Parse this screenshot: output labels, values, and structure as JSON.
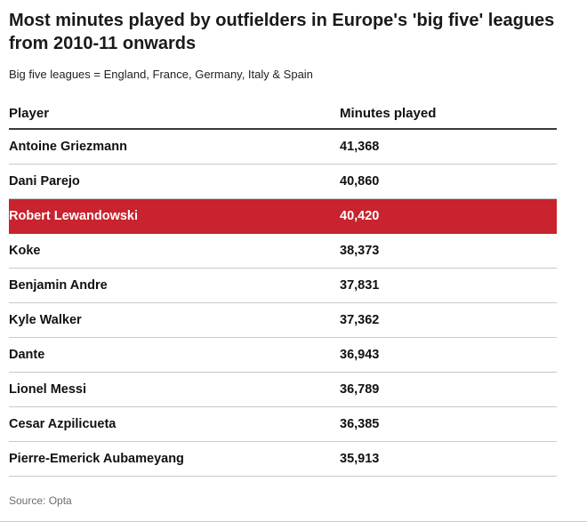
{
  "header": {
    "title": "Most minutes played by outfielders in Europe's 'big five' leagues from 2010-11 onwards",
    "subtitle": "Big five leagues = England, France, Germany, Italy & Spain"
  },
  "table": {
    "columns": [
      "Player",
      "Minutes played"
    ],
    "rows": [
      {
        "player": "Antoine Griezmann",
        "minutes": "41,368",
        "highlight": false
      },
      {
        "player": "Dani Parejo",
        "minutes": "40,860",
        "highlight": false
      },
      {
        "player": "Robert Lewandowski",
        "minutes": "40,420",
        "highlight": true
      },
      {
        "player": "Koke",
        "minutes": "38,373",
        "highlight": false
      },
      {
        "player": "Benjamin Andre",
        "minutes": "37,831",
        "highlight": false
      },
      {
        "player": "Kyle Walker",
        "minutes": "37,362",
        "highlight": false
      },
      {
        "player": "Dante",
        "minutes": "36,943",
        "highlight": false
      },
      {
        "player": "Lionel Messi",
        "minutes": "36,789",
        "highlight": false
      },
      {
        "player": "Cesar Azpilicueta",
        "minutes": "36,385",
        "highlight": false
      },
      {
        "player": "Pierre-Emerick Aubameyang",
        "minutes": "35,913",
        "highlight": false
      }
    ]
  },
  "footer": {
    "source": "Source: Opta"
  },
  "colors": {
    "highlight": "#c8232e",
    "highlight_text": "#ffffff"
  },
  "chart_data": {
    "type": "table",
    "title": "Most minutes played by outfielders in Europe's 'big five' leagues from 2010-11 onwards",
    "subtitle": "Big five leagues = England, France, Germany, Italy & Spain",
    "columns": [
      "Player",
      "Minutes played"
    ],
    "rows": [
      [
        "Antoine Griezmann",
        41368
      ],
      [
        "Dani Parejo",
        40860
      ],
      [
        "Robert Lewandowski",
        40420
      ],
      [
        "Koke",
        38373
      ],
      [
        "Benjamin Andre",
        37831
      ],
      [
        "Kyle Walker",
        37362
      ],
      [
        "Dante",
        36943
      ],
      [
        "Lionel Messi",
        36789
      ],
      [
        "Cesar Azpilicueta",
        36385
      ],
      [
        "Pierre-Emerick Aubameyang",
        35913
      ]
    ],
    "highlighted_row": "Robert Lewandowski",
    "source": "Opta"
  }
}
